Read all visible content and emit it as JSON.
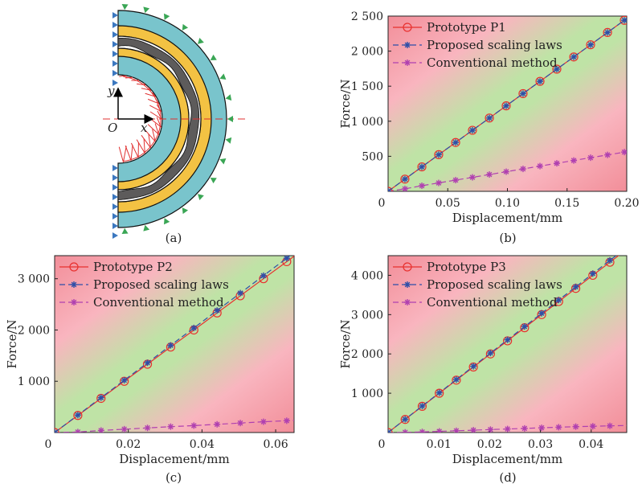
{
  "figure": {
    "captions": [
      "(a)",
      "(b)",
      "(c)",
      "(d)"
    ],
    "diagram": {
      "origin_label": "O",
      "x_label": "x",
      "y_label": "y"
    }
  },
  "colors": {
    "prototype": "#e8302e",
    "proposed": "#2f4fa8",
    "conventional": "#b040b0",
    "bg_red": "#f28e99",
    "bg_pink": "#f9b5bf",
    "bg_green": "#bfe3a6",
    "cyan": "#79c4cc",
    "yellow": "#f3c243",
    "gray": "#5d5b5b"
  },
  "chart_data": [
    {
      "id": "b",
      "type": "line",
      "xlabel": "Displacement/mm",
      "ylabel": "Force/N",
      "xlim": [
        0,
        0.2
      ],
      "ylim": [
        0,
        2500
      ],
      "xticks": [
        0,
        0.05,
        0.1,
        0.15,
        0.2
      ],
      "xtick_labels": [
        "0",
        "0.05",
        "0.10",
        "0.15",
        "0.20"
      ],
      "yticks": [
        500,
        1000,
        1500,
        2000,
        2500
      ],
      "ytick_labels": [
        "500",
        "1 000",
        "1 500",
        "2 000",
        "2 500"
      ],
      "legend": "top-left",
      "x": [
        0,
        0.0141,
        0.0283,
        0.0424,
        0.0566,
        0.0707,
        0.0849,
        0.099,
        0.1131,
        0.1273,
        0.1414,
        0.1556,
        0.1697,
        0.1839,
        0.198
      ],
      "series": [
        {
          "name": "Prototype P1",
          "style": "prototype",
          "values": [
            0,
            174,
            349,
            523,
            697,
            871,
            1046,
            1220,
            1394,
            1569,
            1743,
            1917,
            2091,
            2266,
            2440
          ]
        },
        {
          "name": "Proposed scaling laws",
          "style": "proposed",
          "values": [
            0,
            174,
            349,
            523,
            697,
            871,
            1046,
            1220,
            1394,
            1569,
            1743,
            1917,
            2091,
            2266,
            2440
          ]
        },
        {
          "name": "Conventional method",
          "style": "conventional",
          "values": [
            0,
            35,
            80,
            120,
            160,
            200,
            240,
            280,
            320,
            360,
            400,
            440,
            480,
            520,
            560
          ]
        }
      ]
    },
    {
      "id": "c",
      "type": "line",
      "xlabel": "Displacement/mm",
      "ylabel": "Force/N",
      "xlim": [
        0,
        0.065
      ],
      "ylim": [
        0,
        3450
      ],
      "xticks": [
        0,
        0.02,
        0.04,
        0.06
      ],
      "xtick_labels": [
        "0",
        "0.02",
        "0.04",
        "0.06"
      ],
      "yticks": [
        1000,
        2000,
        3000
      ],
      "ytick_labels": [
        "1 000",
        "2 000",
        "3 000"
      ],
      "legend": "top-left",
      "x": [
        0,
        0.0063,
        0.0126,
        0.0189,
        0.0252,
        0.0315,
        0.0378,
        0.0441,
        0.0504,
        0.0567,
        0.063
      ],
      "series": [
        {
          "name": "Prototype P2",
          "style": "prototype",
          "values": [
            0,
            333,
            667,
            1000,
            1333,
            1667,
            2000,
            2333,
            2667,
            3000,
            3333
          ]
        },
        {
          "name": "Proposed scaling laws",
          "style": "proposed",
          "values": [
            0,
            340,
            680,
            1020,
            1360,
            1700,
            2040,
            2380,
            2720,
            3060,
            3400
          ]
        },
        {
          "name": "Conventional method",
          "style": "conventional",
          "values": [
            0,
            10,
            40,
            65,
            90,
            115,
            135,
            160,
            185,
            210,
            230
          ]
        }
      ]
    },
    {
      "id": "d",
      "type": "line",
      "xlabel": "Displacement/mm",
      "ylabel": "Force/N",
      "xlim": [
        0,
        0.047
      ],
      "ylim": [
        0,
        4500
      ],
      "xticks": [
        0,
        0.01,
        0.02,
        0.03,
        0.04
      ],
      "xtick_labels": [
        "0",
        "0.01",
        "0.02",
        "0.03",
        "0.04"
      ],
      "yticks": [
        1000,
        2000,
        3000,
        4000
      ],
      "ytick_labels": [
        "1 000",
        "2 000",
        "3 000",
        "4 000"
      ],
      "legend": "top-left",
      "x": [
        0,
        0.00336,
        0.00672,
        0.01008,
        0.01344,
        0.0168,
        0.02016,
        0.02352,
        0.02688,
        0.03024,
        0.0336,
        0.03696,
        0.04032,
        0.04368
      ],
      "series": [
        {
          "name": "Prototype P3",
          "style": "prototype",
          "values": [
            0,
            333,
            667,
            1000,
            1333,
            1667,
            2000,
            2333,
            2667,
            3000,
            3333,
            3667,
            4000,
            4333
          ]
        },
        {
          "name": "Proposed scaling laws",
          "style": "proposed",
          "values": [
            0,
            337,
            674,
            1011,
            1348,
            1685,
            2022,
            2359,
            2696,
            3033,
            3370,
            3707,
            4044,
            4380
          ]
        },
        {
          "name": "Conventional method",
          "style": "conventional",
          "values": [
            0,
            5,
            15,
            30,
            45,
            60,
            75,
            90,
            105,
            120,
            135,
            150,
            160,
            170
          ]
        }
      ]
    }
  ]
}
